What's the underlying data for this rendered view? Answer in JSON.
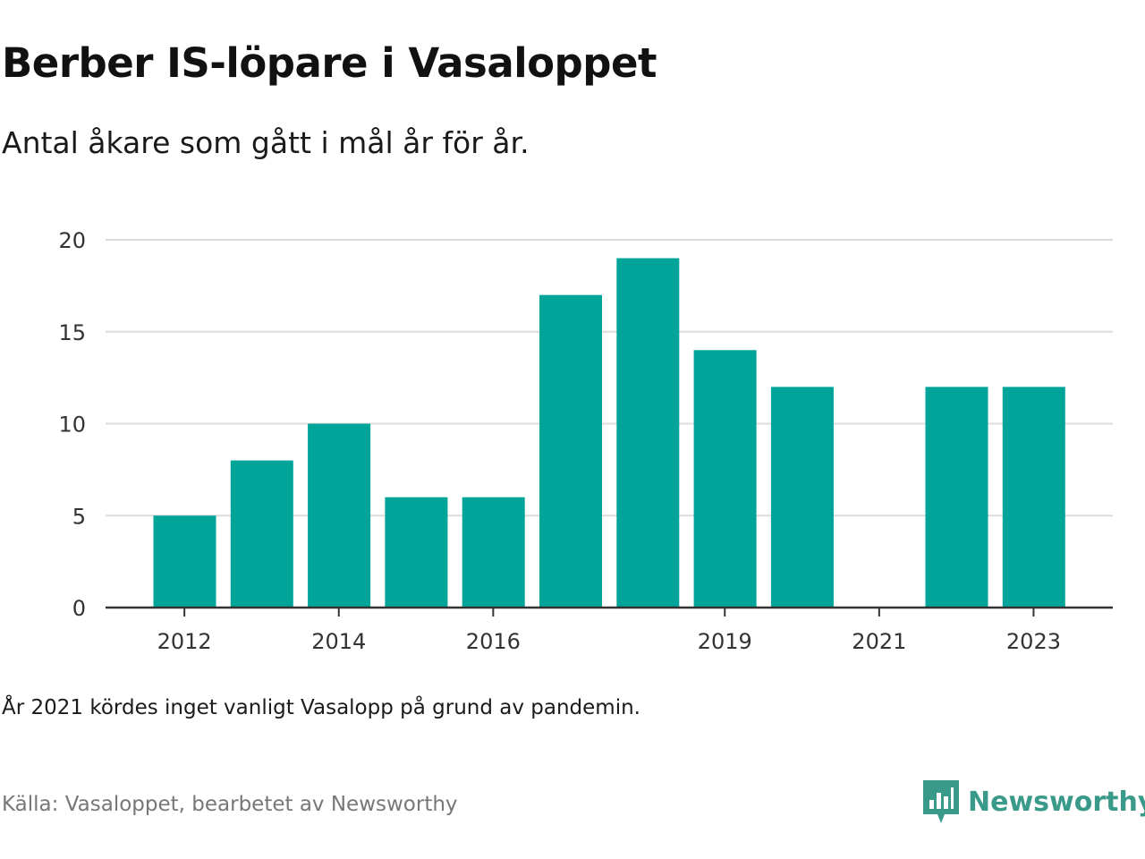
{
  "title": "Berber IS-löpare i Vasaloppet",
  "subtitle": "Antal åkare som gått i mål år för år.",
  "note": "År 2021 kördes inget vanligt Vasalopp på grund av pandemin.",
  "source": "Källa: Vasaloppet, bearbetet av Newsworthy",
  "logo": {
    "text": "Newsworthy",
    "icon": "newsworthy-bar-chart-icon",
    "color": "#3a9a8a"
  },
  "chart_data": {
    "type": "bar",
    "categories": [
      2012,
      2013,
      2014,
      2015,
      2016,
      2017,
      2018,
      2019,
      2020,
      2021,
      2022,
      2023
    ],
    "values": [
      5,
      8,
      10,
      6,
      6,
      17,
      19,
      14,
      12,
      0,
      12,
      12
    ],
    "x_tick_labels": [
      "2012",
      "2014",
      "2016",
      "2019",
      "2021",
      "2023"
    ],
    "y_ticks": [
      0,
      5,
      10,
      15,
      20
    ],
    "ylim": [
      0,
      20
    ],
    "bar_color": "#00a499",
    "grid": true,
    "legend": "none"
  }
}
